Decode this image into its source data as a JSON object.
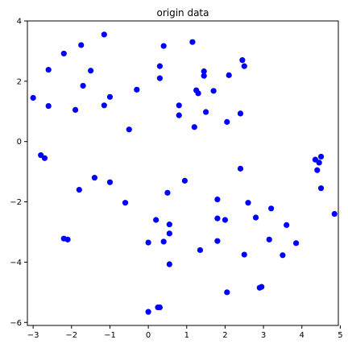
{
  "chart_data": {
    "type": "scatter",
    "title": "origin data",
    "xlabel": "",
    "ylabel": "",
    "xlim": [
      -3.15,
      4.95
    ],
    "ylim": [
      -6.1,
      4.0
    ],
    "grid": false,
    "legend": false,
    "x_ticks": [
      -3,
      -2,
      -1,
      0,
      1,
      2,
      3,
      4,
      5
    ],
    "x_tick_labels": [
      "−3",
      "−2",
      "−1",
      "0",
      "1",
      "2",
      "3",
      "4",
      "5"
    ],
    "y_ticks": [
      4,
      2,
      0,
      -2,
      -4,
      -6
    ],
    "y_tick_labels": [
      "4",
      "2",
      "0",
      "−2",
      "−4",
      "−6"
    ],
    "marker_color": "#0000ff",
    "series": [
      {
        "points": [
          [
            -3.0,
            1.45
          ],
          [
            -2.6,
            2.38
          ],
          [
            -2.6,
            1.18
          ],
          [
            -2.2,
            2.92
          ],
          [
            -1.75,
            3.2
          ],
          [
            -1.5,
            2.35
          ],
          [
            -1.7,
            1.85
          ],
          [
            -1.9,
            1.05
          ],
          [
            -1.15,
            3.55
          ],
          [
            -1.0,
            1.48
          ],
          [
            -1.15,
            1.2
          ],
          [
            -0.3,
            1.72
          ],
          [
            -0.5,
            0.4
          ],
          [
            0.3,
            2.5
          ],
          [
            0.3,
            2.1
          ],
          [
            0.4,
            3.17
          ],
          [
            1.15,
            3.3
          ],
          [
            1.45,
            2.33
          ],
          [
            1.45,
            2.18
          ],
          [
            1.25,
            1.7
          ],
          [
            1.3,
            1.6
          ],
          [
            1.7,
            1.68
          ],
          [
            0.8,
            1.2
          ],
          [
            0.8,
            0.87
          ],
          [
            1.5,
            0.98
          ],
          [
            1.2,
            0.48
          ],
          [
            2.1,
            2.2
          ],
          [
            2.45,
            2.7
          ],
          [
            2.5,
            2.5
          ],
          [
            2.4,
            0.93
          ],
          [
            2.05,
            0.65
          ],
          [
            -2.8,
            -0.45
          ],
          [
            -2.7,
            -0.55
          ],
          [
            -1.4,
            -1.2
          ],
          [
            -1.8,
            -1.6
          ],
          [
            -1.0,
            -1.35
          ],
          [
            -2.2,
            -3.22
          ],
          [
            -2.1,
            -3.25
          ],
          [
            -0.6,
            -2.03
          ],
          [
            0.95,
            -1.3
          ],
          [
            0.5,
            -1.7
          ],
          [
            0.2,
            -2.6
          ],
          [
            0.55,
            -2.75
          ],
          [
            0.55,
            -3.05
          ],
          [
            0.4,
            -3.32
          ],
          [
            0.0,
            -3.35
          ],
          [
            0.55,
            -4.07
          ],
          [
            1.35,
            -3.6
          ],
          [
            1.8,
            -1.92
          ],
          [
            1.8,
            -2.55
          ],
          [
            2.0,
            -2.6
          ],
          [
            1.8,
            -3.3
          ],
          [
            2.4,
            -0.9
          ],
          [
            2.6,
            -2.03
          ],
          [
            2.8,
            -2.52
          ],
          [
            3.2,
            -2.22
          ],
          [
            3.6,
            -2.77
          ],
          [
            3.15,
            -3.25
          ],
          [
            3.85,
            -3.37
          ],
          [
            3.5,
            -3.77
          ],
          [
            2.5,
            -3.75
          ],
          [
            2.05,
            -5.0
          ],
          [
            2.9,
            -4.85
          ],
          [
            2.95,
            -4.82
          ],
          [
            0.25,
            -5.5
          ],
          [
            0.3,
            -5.5
          ],
          [
            0.0,
            -5.65
          ],
          [
            4.35,
            -0.6
          ],
          [
            4.5,
            -0.5
          ],
          [
            4.45,
            -0.7
          ],
          [
            4.4,
            -0.95
          ],
          [
            4.5,
            -1.55
          ],
          [
            4.85,
            -2.4
          ]
        ]
      }
    ]
  }
}
